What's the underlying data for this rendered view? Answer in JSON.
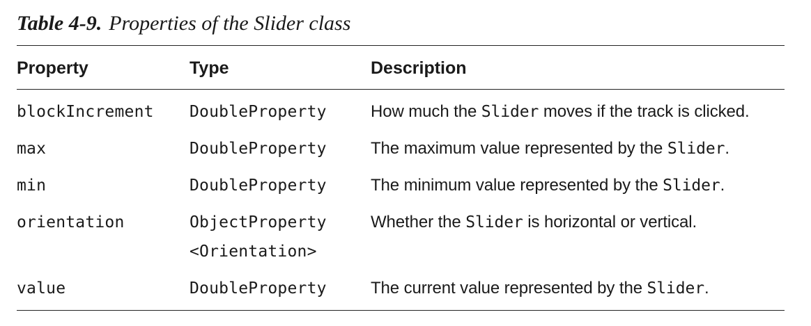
{
  "caption": {
    "number": "Table 4-9.",
    "title": "Properties of the Slider class"
  },
  "table": {
    "headers": {
      "property": "Property",
      "type": "Type",
      "description": "Description"
    },
    "rows": [
      {
        "property": "blockIncrement",
        "type": [
          "DoubleProperty"
        ],
        "description": {
          "before": "How much the ",
          "code": "Slider",
          "after": " moves if the track is clicked."
        }
      },
      {
        "property": "max",
        "type": [
          "DoubleProperty"
        ],
        "description": {
          "before": "The maximum value represented by the ",
          "code": "Slider",
          "after": "."
        }
      },
      {
        "property": "min",
        "type": [
          "DoubleProperty"
        ],
        "description": {
          "before": "The minimum value represented by the ",
          "code": "Slider",
          "after": "."
        }
      },
      {
        "property": "orientation",
        "type": [
          "ObjectProperty",
          "<Orientation>"
        ],
        "description": {
          "before": "Whether the ",
          "code": "Slider",
          "after": " is horizontal or vertical."
        }
      },
      {
        "property": "value",
        "type": [
          "DoubleProperty"
        ],
        "description": {
          "before": "The current value represented by the ",
          "code": "Slider",
          "after": "."
        }
      }
    ]
  }
}
